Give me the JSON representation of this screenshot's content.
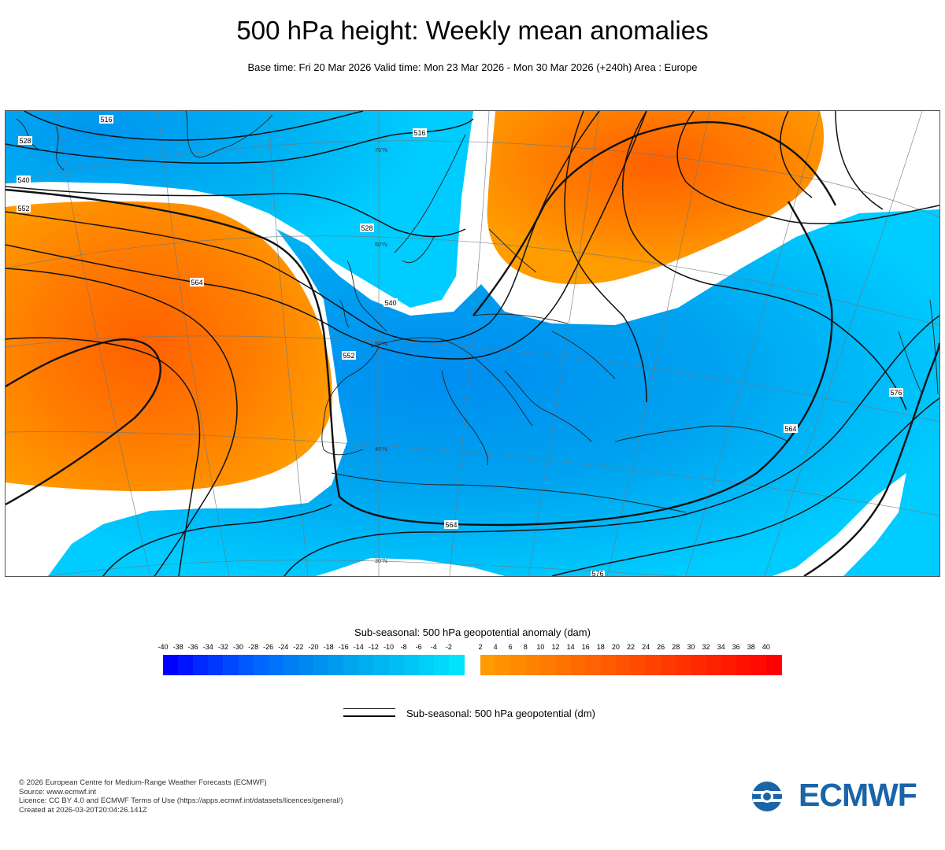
{
  "title": "500 hPa height: Weekly mean anomalies",
  "subtitle": "Base time: Fri 20 Mar 2026 Valid time: Mon 23 Mar 2026 - Mon 30 Mar 2026 (+240h) Area : Europe",
  "map": {
    "contour_labels": [
      {
        "id": "c516a",
        "text": "516"
      },
      {
        "id": "c516b",
        "text": "516"
      },
      {
        "id": "c528",
        "text": "528"
      },
      {
        "id": "c528b",
        "text": "528"
      },
      {
        "id": "c540a",
        "text": "540"
      },
      {
        "id": "c540b",
        "text": "540"
      },
      {
        "id": "c552a",
        "text": "552"
      },
      {
        "id": "c552b",
        "text": "552"
      },
      {
        "id": "c564a",
        "text": "564"
      },
      {
        "id": "c564b",
        "text": "564"
      },
      {
        "id": "c564c",
        "text": "564"
      },
      {
        "id": "c576a",
        "text": "576"
      },
      {
        "id": "c576b",
        "text": "576"
      }
    ],
    "latitude_labels": [
      {
        "id": "lat70",
        "text": "70°N"
      },
      {
        "id": "lat60",
        "text": "60°N"
      },
      {
        "id": "lat50",
        "text": "50°N"
      },
      {
        "id": "lat40",
        "text": "40°N"
      },
      {
        "id": "lat30",
        "text": "30°N"
      }
    ],
    "colors": {
      "positive_anomaly": "#ff9a00",
      "positive_core": "#ff6a00",
      "negative_anomaly": "#00ccff",
      "negative_core": "#008ff0"
    }
  },
  "legend": {
    "title": "Sub-seasonal: 500 hPa geopotential anomaly (dam)",
    "ticks": [
      "-40",
      "-38",
      "-36",
      "-34",
      "-32",
      "-30",
      "-28",
      "-26",
      "-24",
      "-22",
      "-20",
      "-18",
      "-16",
      "-14",
      "-12",
      "-10",
      "-8",
      "-6",
      "-4",
      "-2",
      "2",
      "4",
      "6",
      "8",
      "10",
      "12",
      "14",
      "16",
      "18",
      "20",
      "22",
      "24",
      "26",
      "28",
      "30",
      "32",
      "34",
      "36",
      "38",
      "40"
    ],
    "negative_colors": [
      "#0000ff",
      "#0014ff",
      "#0028ff",
      "#0038ff",
      "#0048ff",
      "#0058ff",
      "#0066ff",
      "#0072fa",
      "#007ef6",
      "#0088f2",
      "#0092ef",
      "#009bee",
      "#00a4ef",
      "#00adf0",
      "#00b6f2",
      "#00bef4",
      "#00c6f6",
      "#00cff9",
      "#00d9fb",
      "#00e3fd"
    ],
    "positive_colors": [
      "#ff9a00",
      "#ff9200",
      "#ff8a00",
      "#ff8200",
      "#ff7a00",
      "#ff7200",
      "#ff6a00",
      "#ff6200",
      "#ff5a00",
      "#ff5200",
      "#ff4a00",
      "#ff4200",
      "#ff3a00",
      "#ff3200",
      "#ff2a00",
      "#ff2200",
      "#ff1a00",
      "#ff1200",
      "#ff0a00",
      "#ff0000"
    ],
    "line_label": "Sub-seasonal: 500 hPa geopotential (dm)"
  },
  "footer": {
    "copyright": "© 2026 European Centre for Medium-Range Weather Forecasts (ECMWF)",
    "source": "Source: www.ecmwf.int",
    "licence": "Licence: CC BY 4.0 and ECMWF Terms of Use (https://apps.ecmwf.int/datasets/licences/general/)",
    "created": "Created at 2026-03-20T20:04:26.141Z"
  },
  "logo": {
    "text": "ECMWF",
    "color": "#1a64a8"
  }
}
